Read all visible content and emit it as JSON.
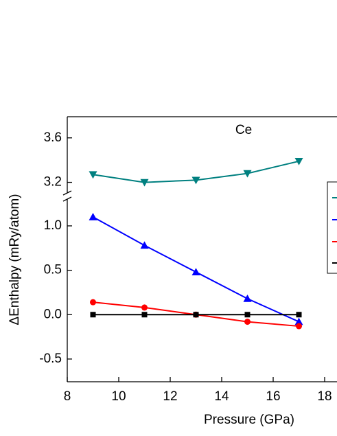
{
  "chart_data": {
    "type": "line",
    "title": "Ce",
    "x_label": "Pressure (GPa)",
    "y_label": "ΔEnthalpy (mRy/atom)",
    "x": [
      9,
      11,
      13,
      15,
      17
    ],
    "xlim": [
      8,
      18.48
    ],
    "xticks": [
      8,
      10,
      12,
      14,
      16,
      18
    ],
    "ylim": [
      -0.756,
      1.34
    ],
    "yticks": [
      -0.5,
      {
        "value": 0,
        "label": "0.0"
      },
      0.5,
      {
        "value": 1,
        "label": "1.0"
      }
    ],
    "y2lim": [
      3.08,
      3.79
    ],
    "y2ticks": [
      3.2,
      3.6
    ],
    "series": [
      {
        "color": "#008080",
        "marker": "triangle-down",
        "axis": "y2",
        "values": [
          3.27,
          3.2,
          3.22,
          3.28,
          3.39
        ]
      },
      {
        "color": "#0000ff",
        "marker": "triangle",
        "values": [
          1.1,
          0.78,
          0.48,
          0.18,
          -0.08
        ]
      },
      {
        "color": "#ff0000",
        "marker": "circle",
        "values": [
          0.14,
          0.08,
          0.0,
          -0.08,
          -0.13
        ]
      },
      {
        "color": "#000000",
        "marker": "square",
        "values": [
          0,
          0,
          0,
          0,
          0
        ]
      }
    ]
  }
}
